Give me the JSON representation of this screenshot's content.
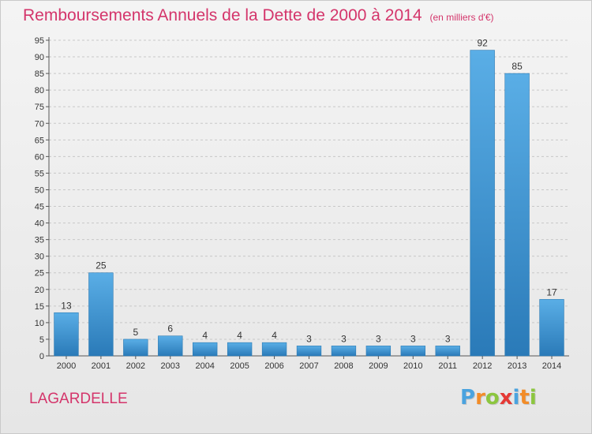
{
  "title": "Remboursements Annuels de la Dette de 2000 à 2014",
  "subtitle": "(en milliers d'€)",
  "commune": "LAGARDELLE",
  "brand": {
    "letters": [
      "P",
      "r",
      "o",
      "x",
      "i",
      "t",
      "i"
    ],
    "colors": [
      "#4aa3df",
      "#f28c28",
      "#8cc63f",
      "#e53935",
      "#4aa3df",
      "#f28c28",
      "#8cc63f"
    ]
  },
  "colors": {
    "bar_top": "#5aaee6",
    "bar_bottom": "#2a7ab8",
    "title": "#d4356b",
    "grid": "#c8c8c8"
  },
  "chart_data": {
    "type": "bar",
    "categories": [
      "2000",
      "2001",
      "2002",
      "2003",
      "2004",
      "2005",
      "2006",
      "2007",
      "2008",
      "2009",
      "2010",
      "2011",
      "2012",
      "2013",
      "2014"
    ],
    "values": [
      13,
      25,
      5,
      6,
      4,
      4,
      4,
      3,
      3,
      3,
      3,
      3,
      92,
      85,
      17
    ],
    "data_labels": [
      "13",
      "25",
      "5",
      "6",
      "4",
      "4",
      "4",
      "3",
      "3",
      "3",
      "3",
      "3",
      "92",
      "85",
      "17"
    ],
    "title": "Remboursements Annuels de la Dette de 2000 à 2014",
    "xlabel": "",
    "ylabel": "",
    "ylim": [
      0,
      95
    ],
    "yticks": [
      0,
      5,
      10,
      15,
      20,
      25,
      30,
      35,
      40,
      45,
      50,
      55,
      60,
      65,
      70,
      75,
      80,
      85,
      90,
      95
    ],
    "grid": true,
    "legend": "none"
  }
}
